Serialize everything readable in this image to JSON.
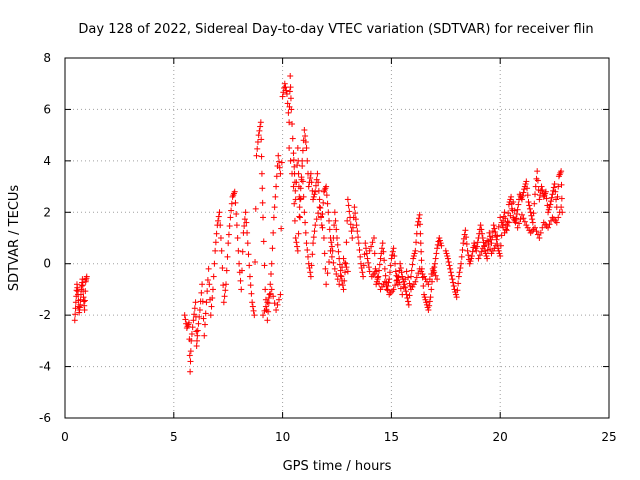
{
  "chart_data": {
    "type": "scatter",
    "title": "Day 128 of 2022, Sidereal Day-to-day VTEC variation (SDTVAR) for receiver flin",
    "xlabel": "GPS time / hours",
    "ylabel": "SDTVAR / TECUs",
    "xlim": [
      0,
      25
    ],
    "ylim": [
      -6,
      8
    ],
    "xticks": [
      0,
      5,
      10,
      15,
      20,
      25
    ],
    "yticks": [
      -6,
      -4,
      -2,
      0,
      2,
      4,
      6,
      8
    ],
    "grid": true,
    "marker": "+",
    "color": "#ff0000",
    "segments": [
      [
        [
          0.45,
          -2.2
        ],
        [
          0.5,
          -1.5
        ],
        [
          0.55,
          -0.8
        ],
        [
          0.6,
          -1.2
        ],
        [
          0.65,
          -1.9
        ],
        [
          0.7,
          -1.6
        ],
        [
          0.75,
          -1.0
        ],
        [
          0.8,
          -0.6
        ],
        [
          0.85,
          -1.3
        ],
        [
          0.9,
          -1.8
        ],
        [
          0.95,
          -0.7
        ],
        [
          1.0,
          -0.5
        ]
      ],
      [
        [
          5.5,
          -2.0
        ],
        [
          5.6,
          -2.5
        ],
        [
          5.7,
          -2.3
        ],
        [
          5.75,
          -4.2
        ],
        [
          5.8,
          -3.0
        ],
        [
          5.9,
          -2.2
        ],
        [
          6.0,
          -1.5
        ],
        [
          6.05,
          -3.2
        ],
        [
          6.1,
          -2.6
        ],
        [
          6.2,
          -1.8
        ],
        [
          6.3,
          -0.8
        ],
        [
          6.4,
          -2.8
        ],
        [
          6.5,
          -1.5
        ],
        [
          6.6,
          -0.2
        ],
        [
          6.7,
          -2.0
        ],
        [
          6.8,
          -1.0
        ],
        [
          6.9,
          0.5
        ],
        [
          7.0,
          1.5
        ],
        [
          7.1,
          2.0
        ],
        [
          7.2,
          0.5
        ],
        [
          7.3,
          -1.5
        ],
        [
          7.4,
          -0.8
        ],
        [
          7.5,
          0.8
        ],
        [
          7.6,
          1.8
        ],
        [
          7.7,
          2.6
        ],
        [
          7.8,
          2.8
        ],
        [
          7.9,
          1.5
        ],
        [
          8.0,
          0.0
        ],
        [
          8.1,
          -1.0
        ],
        [
          8.2,
          1.2
        ],
        [
          8.3,
          2.0
        ],
        [
          8.4,
          0.8
        ],
        [
          8.5,
          -0.5
        ],
        [
          8.6,
          -1.5
        ],
        [
          8.7,
          -2.0
        ],
        [
          8.8,
          4.2
        ],
        [
          8.9,
          5.0
        ],
        [
          9.0,
          5.5
        ],
        [
          9.05,
          3.5
        ],
        [
          9.1,
          1.8
        ],
        [
          9.2,
          -1.0
        ],
        [
          9.3,
          -2.2
        ],
        [
          9.4,
          -1.2
        ],
        [
          9.5,
          0.0
        ],
        [
          9.6,
          1.8
        ],
        [
          9.7,
          3.0
        ],
        [
          9.8,
          4.2
        ],
        [
          9.9,
          3.5
        ]
      ],
      [
        [
          9.1,
          -2.0
        ],
        [
          9.3,
          -1.5
        ],
        [
          9.5,
          -1.0
        ],
        [
          9.7,
          -1.8
        ],
        [
          9.9,
          -1.2
        ],
        [
          10.0,
          6.5
        ],
        [
          10.1,
          7.0
        ],
        [
          10.2,
          6.6
        ],
        [
          10.3,
          5.5
        ],
        [
          10.35,
          7.3
        ],
        [
          10.4,
          6.0
        ],
        [
          10.5,
          4.3
        ],
        [
          10.55,
          3.5
        ],
        [
          10.6,
          2.5
        ],
        [
          10.7,
          4.5
        ],
        [
          10.75,
          3.0
        ],
        [
          10.8,
          1.8
        ],
        [
          10.9,
          4.0
        ],
        [
          11.0,
          5.2
        ],
        [
          11.1,
          4.5
        ],
        [
          11.2,
          3.0
        ],
        [
          11.3,
          3.5
        ],
        [
          11.4,
          2.5
        ],
        [
          11.5,
          2.8
        ],
        [
          11.6,
          3.5
        ],
        [
          11.7,
          2.5
        ],
        [
          11.8,
          1.5
        ],
        [
          11.9,
          2.8
        ],
        [
          12.0,
          3.0
        ],
        [
          12.1,
          2.0
        ],
        [
          12.2,
          1.0
        ],
        [
          12.3,
          0.5
        ],
        [
          12.4,
          2.0
        ],
        [
          12.5,
          1.0
        ],
        [
          12.6,
          0.2
        ],
        [
          12.7,
          -0.5
        ],
        [
          12.8,
          -1.0
        ],
        [
          12.9,
          0.0
        ],
        [
          13.0,
          2.5
        ],
        [
          13.1,
          1.8
        ],
        [
          13.2,
          1.0
        ],
        [
          13.3,
          2.2
        ],
        [
          13.4,
          1.5
        ],
        [
          13.5,
          0.8
        ],
        [
          13.6,
          0.0
        ],
        [
          13.7,
          -0.5
        ],
        [
          13.8,
          0.8
        ],
        [
          13.9,
          0.2
        ],
        [
          14.0,
          -0.3
        ]
      ],
      [
        [
          10.3,
          4.5
        ],
        [
          10.5,
          3.0
        ],
        [
          10.6,
          1.0
        ],
        [
          10.7,
          0.5
        ],
        [
          10.8,
          2.5
        ],
        [
          10.9,
          3.8
        ],
        [
          11.0,
          2.0
        ],
        [
          11.1,
          0.8
        ],
        [
          11.2,
          0.0
        ],
        [
          11.3,
          -0.5
        ],
        [
          11.4,
          0.8
        ],
        [
          11.5,
          1.5
        ],
        [
          11.7,
          2.2
        ],
        [
          11.9,
          1.0
        ],
        [
          12.0,
          -0.8
        ],
        [
          12.2,
          0.5
        ],
        [
          12.4,
          -0.2
        ],
        [
          12.6,
          -0.8
        ],
        [
          12.8,
          0.2
        ],
        [
          13.0,
          -0.3
        ]
      ],
      [
        [
          14.0,
          0.5
        ],
        [
          14.2,
          1.0
        ],
        [
          14.3,
          -0.8
        ],
        [
          14.4,
          -0.5
        ],
        [
          14.5,
          0.2
        ],
        [
          14.6,
          0.8
        ],
        [
          14.7,
          -0.2
        ],
        [
          14.8,
          -1.0
        ],
        [
          14.9,
          -0.6
        ],
        [
          15.0,
          0.2
        ],
        [
          15.1,
          0.6
        ],
        [
          15.2,
          -0.3
        ],
        [
          15.3,
          -0.8
        ],
        [
          15.4,
          0.0
        ],
        [
          15.5,
          -0.5
        ],
        [
          15.6,
          -0.8
        ],
        [
          15.7,
          -1.2
        ],
        [
          15.8,
          -1.6
        ],
        [
          15.9,
          -0.5
        ],
        [
          16.0,
          0.2
        ],
        [
          16.1,
          0.5
        ],
        [
          16.2,
          1.5
        ],
        [
          16.3,
          1.9
        ],
        [
          16.35,
          0.8
        ],
        [
          16.4,
          -0.2
        ],
        [
          16.5,
          -1.2
        ],
        [
          16.6,
          -1.5
        ],
        [
          16.7,
          -1.8
        ],
        [
          16.8,
          -1.3
        ],
        [
          16.9,
          -0.4
        ],
        [
          17.0,
          0.0
        ],
        [
          17.1,
          0.6
        ],
        [
          17.2,
          1.0
        ],
        [
          17.3,
          0.7
        ]
      ],
      [
        [
          14.1,
          -0.5
        ],
        [
          14.3,
          -0.3
        ],
        [
          14.5,
          -1.0
        ],
        [
          14.7,
          -0.7
        ],
        [
          14.9,
          -1.2
        ],
        [
          15.1,
          -1.0
        ],
        [
          15.3,
          -0.5
        ],
        [
          15.5,
          -1.2
        ],
        [
          15.7,
          -0.3
        ],
        [
          15.9,
          -1.0
        ],
        [
          16.1,
          -0.7
        ],
        [
          16.3,
          -0.2
        ],
        [
          16.5,
          -0.5
        ],
        [
          16.7,
          -0.8
        ],
        [
          16.9,
          -0.2
        ],
        [
          17.1,
          -0.6
        ]
      ],
      [
        [
          17.5,
          0.5
        ],
        [
          17.6,
          0.2
        ],
        [
          17.7,
          -0.2
        ],
        [
          17.8,
          -0.6
        ],
        [
          17.9,
          -1.0
        ],
        [
          18.0,
          -1.3
        ],
        [
          18.1,
          -0.5
        ],
        [
          18.2,
          0.0
        ],
        [
          18.3,
          0.8
        ],
        [
          18.4,
          1.3
        ],
        [
          18.5,
          0.5
        ],
        [
          18.6,
          0.0
        ],
        [
          18.7,
          0.3
        ],
        [
          18.8,
          0.8
        ],
        [
          18.9,
          0.5
        ],
        [
          19.0,
          1.0
        ],
        [
          19.1,
          1.5
        ],
        [
          19.2,
          1.0
        ],
        [
          19.3,
          0.5
        ],
        [
          19.4,
          0.2
        ],
        [
          19.5,
          1.2
        ],
        [
          19.6,
          0.8
        ],
        [
          19.7,
          1.5
        ],
        [
          19.8,
          1.1
        ],
        [
          19.9,
          0.6
        ],
        [
          20.0,
          0.3
        ],
        [
          20.1,
          1.5
        ],
        [
          20.2,
          2.0
        ],
        [
          20.3,
          1.3
        ],
        [
          20.4,
          2.3
        ],
        [
          20.5,
          2.6
        ],
        [
          20.6,
          1.8
        ],
        [
          20.7,
          1.6
        ],
        [
          20.8,
          2.1
        ],
        [
          20.9,
          2.7
        ],
        [
          21.0,
          2.5
        ],
        [
          21.1,
          2.9
        ],
        [
          21.2,
          3.2
        ],
        [
          21.3,
          2.4
        ],
        [
          21.4,
          2.0
        ],
        [
          21.5,
          1.6
        ],
        [
          21.6,
          2.7
        ],
        [
          21.7,
          3.6
        ],
        [
          21.8,
          2.5
        ],
        [
          21.9,
          3.0
        ],
        [
          22.0,
          2.6
        ],
        [
          22.1,
          2.8
        ],
        [
          22.2,
          2.0
        ],
        [
          22.3,
          2.3
        ],
        [
          22.4,
          2.7
        ],
        [
          22.5,
          3.1
        ],
        [
          22.6,
          2.2
        ],
        [
          22.7,
          3.4
        ],
        [
          22.8,
          3.6
        ],
        [
          22.85,
          2.0
        ]
      ],
      [
        [
          19.0,
          0.2
        ],
        [
          19.2,
          0.6
        ],
        [
          19.4,
          0.9
        ],
        [
          19.6,
          0.4
        ],
        [
          19.8,
          0.7
        ],
        [
          20.0,
          1.8
        ],
        [
          20.2,
          1.2
        ],
        [
          20.4,
          1.6
        ],
        [
          20.6,
          2.4
        ],
        [
          20.8,
          1.4
        ],
        [
          21.0,
          1.9
        ],
        [
          21.2,
          1.5
        ],
        [
          21.4,
          1.2
        ],
        [
          21.6,
          1.4
        ],
        [
          21.8,
          1.0
        ],
        [
          22.0,
          1.6
        ],
        [
          22.2,
          1.4
        ],
        [
          22.4,
          1.8
        ],
        [
          22.6,
          1.6
        ],
        [
          22.8,
          2.2
        ]
      ]
    ]
  }
}
